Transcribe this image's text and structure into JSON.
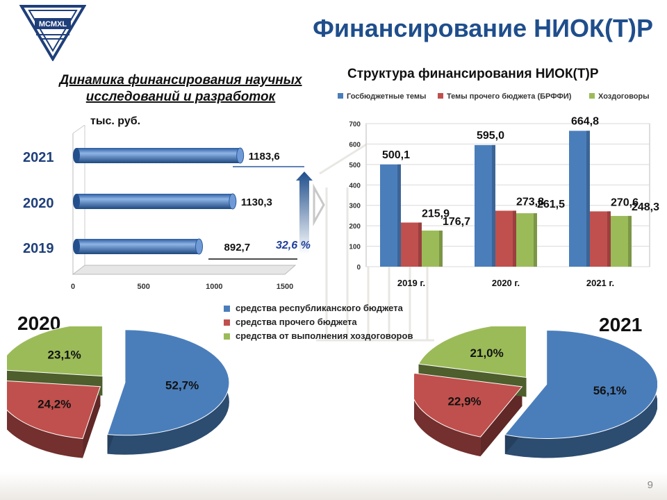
{
  "header": {
    "logo_text": "MCMXL",
    "title": "Финансирование НИОК(Т)Р"
  },
  "footer": {
    "page_number": "9"
  },
  "colors": {
    "title": "#1f4e8c",
    "blue": "#4a7ebb",
    "red": "#c0504d",
    "green": "#9bbb59"
  },
  "chart_data": [
    {
      "type": "bar",
      "orientation": "horizontal",
      "title": "Динамика финансирования научных исследований и разработок",
      "unit_label": "тыс. руб.",
      "categories": [
        "2021",
        "2020",
        "2019"
      ],
      "values": [
        1183.6,
        1130.3,
        892.7
      ],
      "value_labels": [
        "1183,6",
        "1130,3",
        "892,7"
      ],
      "xlim": [
        0,
        1500
      ],
      "xticks": [
        "0",
        "500",
        "1000",
        "1500"
      ],
      "growth_annotation": "32,6 %"
    },
    {
      "type": "bar",
      "title": "Структура финансирования НИОК(Т)Р",
      "categories": [
        "2019 г.",
        "2020 г.",
        "2021 г."
      ],
      "series": [
        {
          "name": "Госбюджетные темы",
          "values": [
            500.1,
            595.0,
            664.8
          ],
          "labels": [
            "500,1",
            "595,0",
            "664,8"
          ]
        },
        {
          "name": "Темы прочего бюджета (БРФФИ)",
          "values": [
            215.9,
            273.8,
            270.6
          ],
          "labels": [
            "215,9",
            "273,8",
            "270,6"
          ]
        },
        {
          "name": "Хоздоговоры",
          "values": [
            176.7,
            261.5,
            248.3
          ],
          "labels": [
            "176,7",
            "261,5",
            "248,3"
          ]
        }
      ],
      "ylim": [
        0,
        700
      ],
      "yticks": [
        "0",
        "100",
        "200",
        "300",
        "400",
        "500",
        "600",
        "700"
      ],
      "legend_position": "top"
    },
    {
      "type": "pie",
      "title": "2020",
      "legend": [
        "средства республиканского бюджета",
        "средства прочего бюджета",
        "средства от выполнения хоздоговоров"
      ],
      "values": [
        52.7,
        24.2,
        23.1
      ],
      "labels": [
        "52,7%",
        "24,2%",
        "23,1%"
      ]
    },
    {
      "type": "pie",
      "title": "2021",
      "legend": [
        "средства республиканского бюджета",
        "средства прочего бюджета",
        "средства от выполнения хоздоговоров"
      ],
      "values": [
        56.1,
        22.9,
        21.0
      ],
      "labels": [
        "56,1%",
        "22,9%",
        "21,0%"
      ]
    }
  ]
}
